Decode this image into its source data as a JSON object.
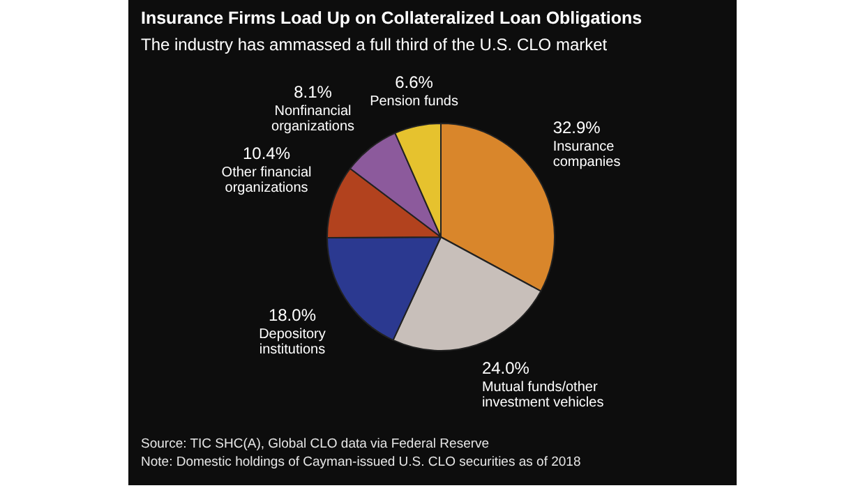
{
  "chart_data": {
    "type": "pie",
    "title": "Insurance Firms Load Up on Collateralized Loan Obligations",
    "subtitle": "The industry has ammassed a full third of the U.S. CLO market",
    "categories": [
      "Insurance companies",
      "Mutual funds/other investment vehicles",
      "Depository institutions",
      "Other financial organizations",
      "Nonfinancial organizations",
      "Pension funds"
    ],
    "values": [
      32.9,
      24.0,
      18.0,
      10.4,
      8.1,
      6.6
    ],
    "colors": [
      "#d9862b",
      "#c8bfba",
      "#2b3990",
      "#b2421e",
      "#8c5a9c",
      "#e6c22e"
    ],
    "value_labels": [
      "32.9%",
      "24.0%",
      "18.0%",
      "10.4%",
      "8.1%",
      "6.6%"
    ],
    "legend": false,
    "annotations": [
      "Source: TIC SHC(A), Global CLO data via Federal Reserve",
      "Note: Domestic holdings of Cayman-issued U.S. CLO securities as of 2018"
    ]
  }
}
